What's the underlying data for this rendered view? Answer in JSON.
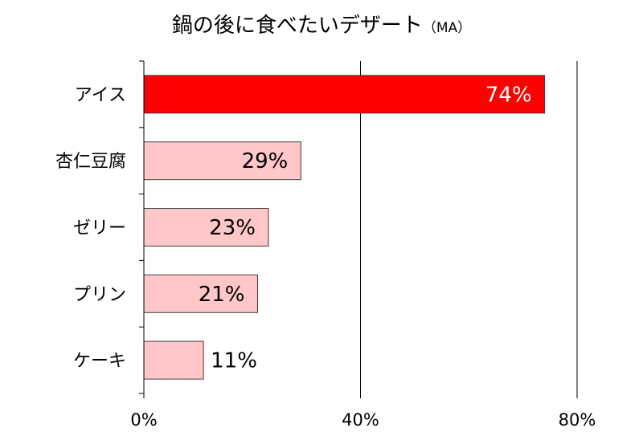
{
  "chart_data": {
    "type": "bar",
    "orientation": "horizontal",
    "title": "鍋の後に食べたいデザート",
    "title_suffix": "（MA）",
    "categories": [
      "アイス",
      "杏仁豆腐",
      "ゼリー",
      "プリン",
      "ケーキ"
    ],
    "values": [
      74,
      29,
      23,
      21,
      11
    ],
    "data_labels": [
      "74%",
      "29%",
      "23%",
      "21%",
      "11%"
    ],
    "xlim": [
      0,
      80
    ],
    "x_ticks": [
      0,
      40,
      80
    ],
    "x_tick_labels": [
      "0%",
      "40%",
      "80%"
    ],
    "grid": "vertical major gridlines",
    "highlight_index": 0,
    "colors": {
      "highlight_bar": "#ff0000",
      "bar": "#ffc7c7",
      "bar_border": "#404040",
      "highlight_label": "#ffffff",
      "label": "#000000",
      "gridline": "#000000"
    }
  }
}
